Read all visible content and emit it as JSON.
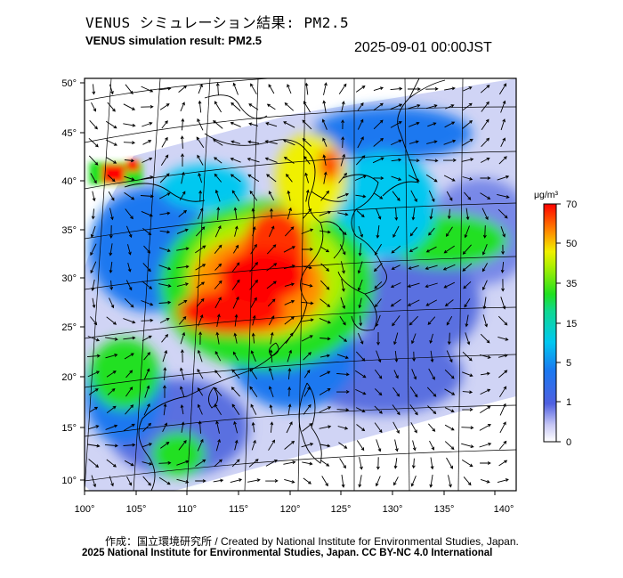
{
  "header": {
    "title_jp": "VENUS シミュレーション結果: PM2.5",
    "title_en": "VENUS simulation result: PM2.5",
    "timestamp": "2025-09-01 00:00JST"
  },
  "map": {
    "lon_ticks": [
      "100°",
      "105°",
      "110°",
      "115°",
      "120°",
      "125°",
      "130°",
      "135°",
      "140°"
    ],
    "lat_ticks": [
      "50°",
      "45°",
      "40°",
      "35°",
      "30°",
      "25°",
      "20°",
      "15°",
      "10°"
    ],
    "lon_range": [
      100,
      142
    ],
    "lat_range": [
      9,
      50
    ],
    "layers": [
      "PM2.5 concentration field",
      "wind vectors",
      "coastlines"
    ]
  },
  "colorbar": {
    "unit": "μg/m³",
    "tick_labels": [
      "70",
      "50",
      "35",
      "15",
      "5",
      "1",
      "0"
    ],
    "colors": {
      "c0": "#ffffff",
      "c1": "#5060e0",
      "c5": "#00c8f0",
      "c15": "#20e020",
      "c35": "#f0f000",
      "c50": "#ff9000",
      "c70": "#ff0000"
    }
  },
  "footer": {
    "credit_jp": "作成：国立環境研究所 / Created by National Institute for Environmental Studies, Japan.",
    "credit_en": "2025 National Institute for Environmental Studies, Japan. CC BY-NC 4.0 International"
  }
}
